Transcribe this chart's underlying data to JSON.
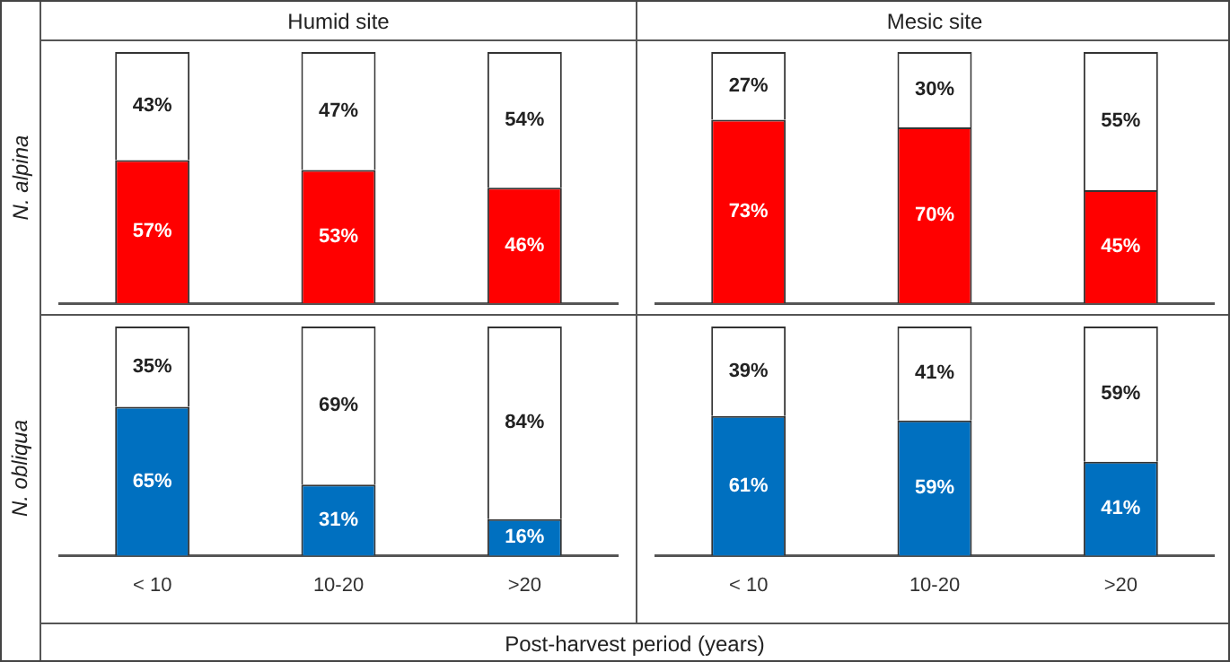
{
  "chart_data": [
    {
      "type": "bar",
      "title": "Humid site",
      "ylabel": "N. alpina",
      "categories": [
        null,
        null,
        null
      ],
      "stacked": true,
      "tick_labels": false,
      "grid": false,
      "legend": false,
      "series": [
        {
          "color": "#ff0000",
          "values": [
            57,
            53,
            46
          ],
          "value_labels": [
            "57%",
            "53%",
            "46%"
          ]
        },
        {
          "color": "#ffffff",
          "values": [
            43,
            47,
            54
          ],
          "value_labels": [
            "43%",
            "47%",
            "54%"
          ]
        }
      ]
    },
    {
      "type": "bar",
      "title": "Mesic site",
      "categories": [
        null,
        null,
        null
      ],
      "stacked": true,
      "tick_labels": false,
      "grid": false,
      "legend": false,
      "series": [
        {
          "color": "#ff0000",
          "values": [
            73,
            70,
            45
          ],
          "value_labels": [
            "73%",
            "70%",
            "45%"
          ]
        },
        {
          "color": "#ffffff",
          "values": [
            27,
            30,
            55
          ],
          "value_labels": [
            "27%",
            "30%",
            "55%"
          ]
        }
      ]
    },
    {
      "type": "bar",
      "ylabel": "N. obliqua",
      "xlabel": "Post-harvest period (years)",
      "categories": [
        "< 10",
        "10-20",
        ">20"
      ],
      "stacked": true,
      "tick_labels": "x",
      "grid": false,
      "legend": false,
      "series": [
        {
          "color": "#0070c0",
          "values": [
            65,
            31,
            16
          ],
          "value_labels": [
            "65%",
            "31%",
            "16%"
          ]
        },
        {
          "color": "#ffffff",
          "values": [
            35,
            69,
            84
          ],
          "value_labels": [
            "35%",
            "69%",
            "84%"
          ]
        }
      ]
    },
    {
      "type": "bar",
      "categories": [
        "< 10",
        "10-20",
        ">20"
      ],
      "stacked": true,
      "tick_labels": "x",
      "grid": false,
      "legend": false,
      "series": [
        {
          "color": "#0070c0",
          "values": [
            61,
            59,
            41
          ],
          "value_labels": [
            "61%",
            "59%",
            "41%"
          ]
        },
        {
          "color": "#ffffff",
          "values": [
            39,
            41,
            59
          ],
          "value_labels": [
            "39%",
            "41%",
            "59%"
          ]
        }
      ]
    }
  ]
}
